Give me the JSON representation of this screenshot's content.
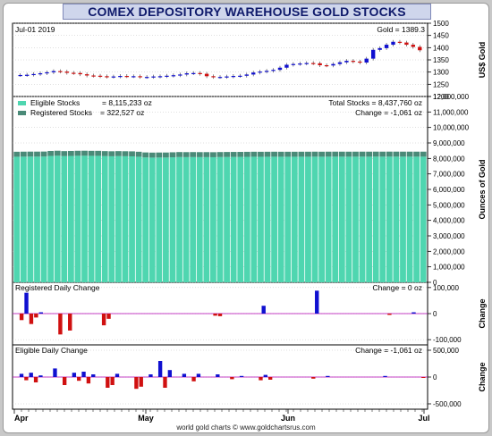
{
  "title": "COMEX DEPOSITORY WAREHOUSE GOLD STOCKS",
  "footer": "world gold charts © www.goldchartsrus.com",
  "colors": {
    "eligible": "#4fd6b0",
    "registered": "#4a8a78",
    "up": "#1010d0",
    "down": "#d01010",
    "zero_line": "#b000b0",
    "grid": "#b0b0b0"
  },
  "chart_data": [
    {
      "type": "candlestick",
      "panel": "price",
      "header_left": "Jul-01  2019",
      "header_right": "Gold = 1389.3",
      "ylabel": "US$ Gold",
      "ylim": [
        1200,
        1500
      ],
      "yticks": [
        "1500",
        "1450",
        "1400",
        "1350",
        "1300",
        "1250",
        "1200"
      ],
      "values": [
        1288,
        1289,
        1292,
        1295,
        1299,
        1304,
        1302,
        1297,
        1296,
        1291,
        1286,
        1285,
        1283,
        1281,
        1282,
        1284,
        1283,
        1283,
        1280,
        1280,
        1282,
        1283,
        1285,
        1287,
        1290,
        1295,
        1296,
        1293,
        1283,
        1280,
        1280,
        1282,
        1284,
        1285,
        1290,
        1298,
        1302,
        1305,
        1309,
        1318,
        1330,
        1333,
        1335,
        1337,
        1336,
        1328,
        1327,
        1333,
        1340,
        1346,
        1343,
        1339,
        1355,
        1391,
        1398,
        1412,
        1424,
        1421,
        1412,
        1403,
        1389.3
      ]
    },
    {
      "type": "bar",
      "panel": "stocks",
      "ylabel": "Ounces of Gold",
      "ylim": [
        0,
        12000000
      ],
      "yticks": [
        "12,000,000",
        "11,000,000",
        "10,000,000",
        "9,000,000",
        "8,000,000",
        "7,000,000",
        "6,000,000",
        "5,000,000",
        "4,000,000",
        "3,000,000",
        "2,000,000",
        "1,000,000",
        "0"
      ],
      "legend": [
        {
          "name": "Eligible Stocks",
          "value": "=    8,115,233 oz"
        },
        {
          "name": "Registered Stocks",
          "value": "=  322,527 oz"
        }
      ],
      "info": [
        "Total Stocks = 8,437,760 oz",
        "Change = -1,061 oz"
      ],
      "series": [
        {
          "name": "Eligible Stocks",
          "values": [
            8110000,
            8115000,
            8120000,
            8118000,
            8122000,
            8160000,
            8175000,
            8150000,
            8160000,
            8172000,
            8175000,
            8168000,
            8168000,
            8150000,
            8140000,
            8150000,
            8142000,
            8135000,
            8110000,
            8065000,
            8055000,
            8060000,
            8060000,
            8075000,
            8090000,
            8085000,
            8088000,
            8085000,
            8085000,
            8080000,
            8090000,
            8095000,
            8098000,
            8100000,
            8105000,
            8110000,
            8108000,
            8110000,
            8112000,
            8110000,
            8110000,
            8110000,
            8112000,
            8112000,
            8115000,
            8112000,
            8115000,
            8116000,
            8115000,
            8114000,
            8115000,
            8116000,
            8115000,
            8117000,
            8116000,
            8118000,
            8117000,
            8116000,
            8116000,
            8116000,
            8115233
          ]
        },
        {
          "name": "Registered Stocks",
          "values": [
            322000,
            322000,
            320000,
            322000,
            322000,
            322000,
            322000,
            322000,
            322000,
            322000,
            322000,
            322000,
            322000,
            322000,
            322000,
            322000,
            322000,
            322000,
            322000,
            322000,
            322000,
            322000,
            322000,
            322000,
            322000,
            322000,
            322000,
            322000,
            322000,
            322000,
            322000,
            322000,
            322000,
            322000,
            322000,
            322000,
            322000,
            322000,
            322000,
            322000,
            322000,
            322000,
            322000,
            322000,
            322000,
            322000,
            322000,
            322000,
            322000,
            322000,
            322000,
            322000,
            322000,
            322000,
            322000,
            322000,
            322000,
            322000,
            322000,
            322000,
            322527
          ]
        }
      ]
    },
    {
      "type": "bar",
      "panel": "registered_change",
      "label_left": "Registered Daily Change",
      "label_right": "Change = 0 oz",
      "ylabel": "Change",
      "ylim": [
        -120000,
        120000
      ],
      "yticks": [
        "100,000",
        "0",
        "-100,000"
      ],
      "values": [
        0,
        -25000,
        80000,
        -40000,
        -15000,
        5000,
        0,
        0,
        0,
        -80000,
        0,
        -65000,
        0,
        0,
        0,
        0,
        0,
        0,
        -45000,
        -20000,
        0,
        0,
        0,
        0,
        0,
        0,
        0,
        0,
        0,
        0,
        0,
        0,
        0,
        0,
        0,
        0,
        0,
        0,
        0,
        0,
        0,
        -8000,
        -10000,
        0,
        0,
        0,
        0,
        0,
        0,
        0,
        0,
        30000,
        0,
        0,
        0,
        0,
        0,
        0,
        0,
        0,
        0,
        0,
        88000,
        0,
        0,
        0,
        0,
        0,
        0,
        0,
        0,
        0,
        0,
        0,
        0,
        0,
        0,
        -5000,
        0,
        0,
        0,
        0,
        5000,
        0,
        0
      ]
    },
    {
      "type": "bar",
      "panel": "eligible_change",
      "label_left": "Eligible Daily Change",
      "label_right": "Change = -1,061 oz",
      "ylabel": "Change",
      "ylim": [
        -600000,
        600000
      ],
      "yticks": [
        "500,000",
        "0",
        "-500,000"
      ],
      "values": [
        0,
        60000,
        -60000,
        80000,
        -100000,
        30000,
        0,
        0,
        160000,
        0,
        -150000,
        0,
        80000,
        -70000,
        100000,
        -120000,
        50000,
        0,
        0,
        -200000,
        -150000,
        60000,
        0,
        0,
        0,
        -220000,
        -180000,
        0,
        50000,
        0,
        300000,
        -200000,
        130000,
        0,
        0,
        60000,
        0,
        -80000,
        60000,
        0,
        0,
        0,
        50000,
        0,
        0,
        -40000,
        0,
        20000,
        0,
        0,
        0,
        -60000,
        40000,
        -50000,
        0,
        0,
        0,
        0,
        0,
        0,
        0,
        0,
        -30000,
        0,
        0,
        20000,
        0,
        0,
        0,
        0,
        0,
        0,
        0,
        0,
        0,
        0,
        0,
        20000,
        0,
        0,
        0,
        0,
        0,
        0,
        0,
        -1061
      ]
    }
  ],
  "x_axis": {
    "labels": [
      "Apr",
      "May",
      "Jun",
      "Jul"
    ]
  }
}
